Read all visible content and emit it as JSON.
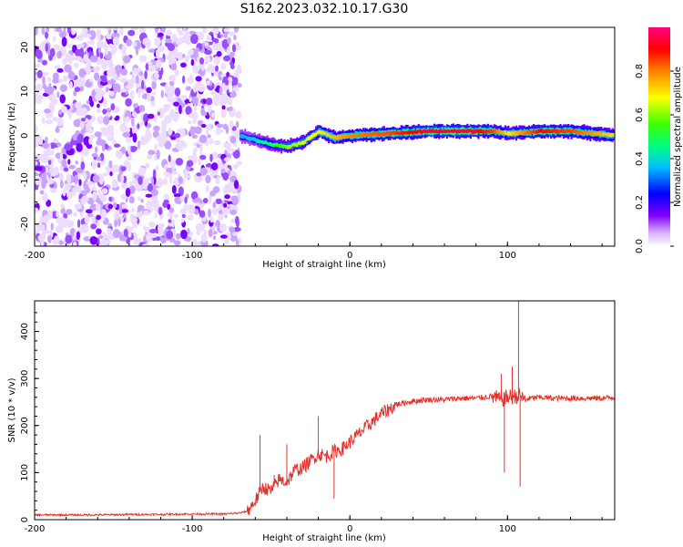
{
  "title": "S162.2023.032.10.17.G30",
  "chart_data": [
    {
      "type": "heatmap",
      "xlabel": "Height of straight line (km)",
      "ylabel": "Frequency (Hz)",
      "xlim": [
        -200,
        168
      ],
      "ylim": [
        -25,
        24.5
      ],
      "xticks": [
        -200,
        -100,
        0,
        100
      ],
      "yticks": [
        -20,
        -10,
        0,
        10,
        20
      ],
      "grid": false,
      "colorbar": {
        "label": "Normalized spectral amplitude",
        "range": [
          0,
          1
        ],
        "ticks": [
          0.0,
          0.2,
          0.4,
          0.6,
          0.8
        ],
        "tick_labels": [
          "0.0",
          "0.2",
          "0.4",
          "0.6",
          "0.8"
        ],
        "colormap": [
          "#ffffff",
          "#cc99ff",
          "#8000ff",
          "#0000ff",
          "#00bfff",
          "#00ff80",
          "#80ff00",
          "#ffff00",
          "#ff8000",
          "#ff0000",
          "#ff0080"
        ]
      },
      "noise_region": {
        "x": [
          -200,
          -70
        ],
        "level": 0.1
      },
      "signal_ridge": [
        {
          "x": -70,
          "freq": 0,
          "amp": 0.35
        },
        {
          "x": -60,
          "freq": -1,
          "amp": 0.4
        },
        {
          "x": -50,
          "freq": -2,
          "amp": 0.5
        },
        {
          "x": -40,
          "freq": -2.5,
          "amp": 0.6
        },
        {
          "x": -30,
          "freq": -1.5,
          "amp": 0.65
        },
        {
          "x": -20,
          "freq": 1,
          "amp": 0.7
        },
        {
          "x": -10,
          "freq": -0.5,
          "amp": 0.75
        },
        {
          "x": 0,
          "freq": 0,
          "amp": 0.8
        },
        {
          "x": 25,
          "freq": 0.5,
          "amp": 0.85
        },
        {
          "x": 50,
          "freq": 1,
          "amp": 0.95
        },
        {
          "x": 75,
          "freq": 1,
          "amp": 0.95
        },
        {
          "x": 90,
          "freq": 1,
          "amp": 0.85
        },
        {
          "x": 100,
          "freq": 0.5,
          "amp": 0.7
        },
        {
          "x": 120,
          "freq": 1,
          "amp": 0.9
        },
        {
          "x": 140,
          "freq": 1,
          "amp": 0.85
        },
        {
          "x": 168,
          "freq": 0,
          "amp": 0.7
        }
      ]
    },
    {
      "type": "line",
      "xlabel": "Height of straight line (km)",
      "ylabel": "SNR (10 * v/v)",
      "xlim": [
        -200,
        168
      ],
      "ylim": [
        0,
        465
      ],
      "xticks": [
        -200,
        -100,
        0,
        100
      ],
      "yticks": [
        0,
        100,
        200,
        300,
        400
      ],
      "grid": false,
      "series": [
        {
          "color": "#e8302a",
          "x": [
            -200,
            -180,
            -160,
            -140,
            -120,
            -100,
            -80,
            -70,
            -65,
            -60,
            -55,
            -50,
            -45,
            -40,
            -35,
            -30,
            -25,
            -20,
            -15,
            -10,
            -5,
            0,
            5,
            10,
            15,
            20,
            25,
            30,
            40,
            50,
            60,
            70,
            80,
            90,
            95,
            100,
            105,
            108,
            110,
            115,
            120,
            130,
            140,
            150,
            160,
            168
          ],
          "y": [
            10,
            10,
            10,
            11,
            11,
            12,
            12,
            14,
            18,
            40,
            70,
            60,
            85,
            80,
            105,
            110,
            125,
            140,
            135,
            145,
            150,
            165,
            180,
            195,
            210,
            225,
            235,
            245,
            252,
            255,
            255,
            258,
            258,
            262,
            255,
            260,
            262,
            265,
            255,
            258,
            260,
            258,
            258,
            258,
            258,
            260
          ]
        }
      ],
      "spikes": [
        {
          "x": -57,
          "y": 180
        },
        {
          "x": -48,
          "y": 95
        },
        {
          "x": -40,
          "y": 160
        },
        {
          "x": -20,
          "y": 220
        },
        {
          "x": -10,
          "y": 45
        },
        {
          "x": 96,
          "y": 310
        },
        {
          "x": 98,
          "y": 100
        },
        {
          "x": 103,
          "y": 325
        },
        {
          "x": 107,
          "y": 465
        },
        {
          "x": 108,
          "y": 70
        }
      ]
    }
  ]
}
